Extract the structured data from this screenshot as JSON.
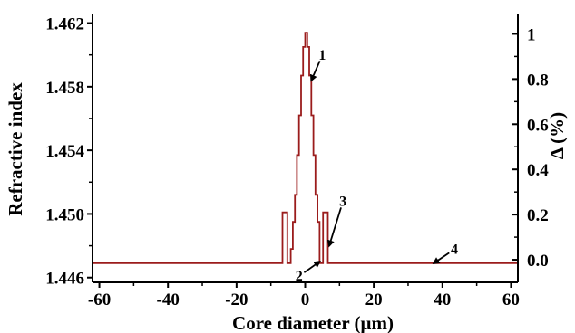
{
  "chart_data": {
    "type": "line",
    "xlabel": "Core diameter (μm)",
    "ylabel": "Refractive index",
    "y2label": "Δ (%)",
    "xlim": [
      -62,
      62
    ],
    "ylim": [
      1.4457,
      1.4626
    ],
    "y2lim": [
      -0.1,
      1.09
    ],
    "x_ticks": [
      -60,
      -40,
      -20,
      0,
      20,
      40,
      60
    ],
    "y_ticks": [
      1.446,
      1.45,
      1.454,
      1.458,
      1.462
    ],
    "y_tick_labels": [
      "1.446",
      "1.450",
      "1.454",
      "1.458",
      "1.462"
    ],
    "y2_ticks": [
      0.0,
      0.2,
      0.4,
      0.6,
      0.8,
      1.0
    ],
    "y2_tick_labels": [
      "0.0",
      "0.2",
      "0.4",
      "0.6",
      "0.8",
      "1"
    ],
    "grid": false,
    "legend": "none",
    "series": [
      {
        "color": "#9b1c1c",
        "x": [
          -62,
          -6.6,
          -6.6,
          -5.2,
          -5.2,
          -4.2,
          -4.2,
          -3.6,
          -3.6,
          -3.0,
          -3.0,
          -2.4,
          -2.4,
          -1.8,
          -1.8,
          -1.2,
          -1.2,
          -0.6,
          -0.6,
          0,
          0,
          0.6,
          0.6,
          1.2,
          1.2,
          1.8,
          1.8,
          2.4,
          2.4,
          3.0,
          3.0,
          3.6,
          3.6,
          4.2,
          4.2,
          5.2,
          5.2,
          6.6,
          6.6,
          62
        ],
        "y": [
          1.4469,
          1.4469,
          1.4501,
          1.4501,
          1.4469,
          1.4469,
          1.4478,
          1.4478,
          1.4495,
          1.4495,
          1.4512,
          1.4512,
          1.4537,
          1.4537,
          1.4562,
          1.4562,
          1.4587,
          1.4587,
          1.4605,
          1.4605,
          1.4614,
          1.4614,
          1.4605,
          1.4605,
          1.4587,
          1.4587,
          1.4562,
          1.4562,
          1.4537,
          1.4537,
          1.4512,
          1.4512,
          1.4495,
          1.4495,
          1.4469,
          1.4469,
          1.4501,
          1.4501,
          1.4469,
          1.4469
        ]
      }
    ],
    "annotations": [
      {
        "label": "1",
        "x": 5.0,
        "y": 1.4597,
        "target_x": 1.8,
        "target_y": 1.4584
      },
      {
        "label": "2",
        "x": -1.8,
        "y": 1.4458,
        "target_x": 4.2,
        "target_y": 1.447
      },
      {
        "label": "3",
        "x": 11.0,
        "y": 1.4505,
        "target_x": 7.0,
        "target_y": 1.448
      },
      {
        "label": "4",
        "x": 43.5,
        "y": 1.4475,
        "target_x": 37.5,
        "target_y": 1.4469
      }
    ]
  }
}
